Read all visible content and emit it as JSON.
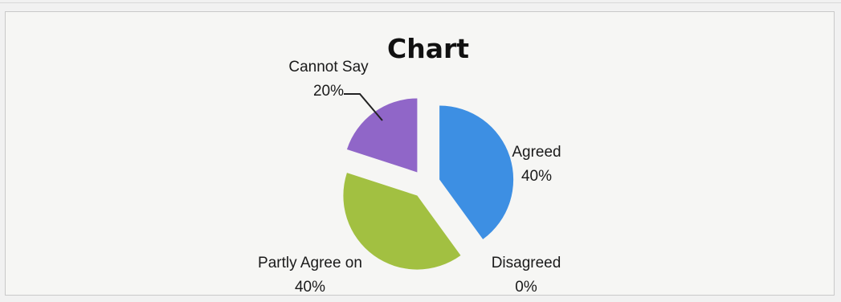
{
  "chart_data": {
    "type": "pie",
    "title": "Chart",
    "categories": [
      "Agreed",
      "Disagreed",
      "Partly Agree on",
      "Cannot Say"
    ],
    "values": [
      40,
      0,
      40,
      20
    ],
    "percent_labels": [
      "40%",
      "0%",
      "40%",
      "20%"
    ],
    "colors": [
      "#3d8fe3",
      "#d9534f",
      "#a2c041",
      "#9066c8"
    ],
    "exploded": true,
    "legend": "none",
    "data_labels": "category-and-percent"
  }
}
